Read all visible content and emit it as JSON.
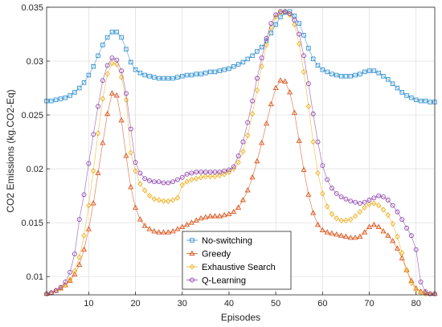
{
  "chart_data": {
    "type": "line",
    "title": "",
    "xlabel": "Episodes",
    "ylabel": "CO2 Emissions (kg.CO2-Eq)",
    "xlim": [
      1,
      84
    ],
    "ylim": [
      0.0083,
      0.035
    ],
    "xticks": [
      10,
      20,
      30,
      40,
      50,
      60,
      70,
      80
    ],
    "yticks": [
      0.01,
      0.015,
      0.02,
      0.025,
      0.03,
      0.035
    ],
    "ytick_labels": [
      "0.01",
      "0.015",
      "0.02",
      "0.025",
      "0.03",
      "0.035"
    ],
    "grid": true,
    "legend_position": "bottom-center",
    "x": [
      1,
      2,
      3,
      4,
      5,
      6,
      7,
      8,
      9,
      10,
      11,
      12,
      13,
      14,
      15,
      16,
      17,
      18,
      19,
      20,
      21,
      22,
      23,
      24,
      25,
      26,
      27,
      28,
      29,
      30,
      31,
      32,
      33,
      34,
      35,
      36,
      37,
      38,
      39,
      40,
      41,
      42,
      43,
      44,
      45,
      46,
      47,
      48,
      49,
      50,
      51,
      52,
      53,
      54,
      55,
      56,
      57,
      58,
      59,
      60,
      61,
      62,
      63,
      64,
      65,
      66,
      67,
      68,
      69,
      70,
      71,
      72,
      73,
      74,
      75,
      76,
      77,
      78,
      79,
      80,
      81,
      82,
      83,
      84
    ],
    "series": [
      {
        "name": "No-switching",
        "color": "#2f8fd0",
        "marker": "square",
        "values": [
          0.0263,
          0.0263,
          0.0264,
          0.0265,
          0.0266,
          0.0268,
          0.0271,
          0.0275,
          0.028,
          0.0287,
          0.0295,
          0.0305,
          0.0315,
          0.0322,
          0.0327,
          0.0327,
          0.0322,
          0.0311,
          0.0299,
          0.0292,
          0.0289,
          0.0287,
          0.0286,
          0.0285,
          0.0284,
          0.0284,
          0.0284,
          0.0284,
          0.0285,
          0.0286,
          0.0287,
          0.0287,
          0.0288,
          0.0288,
          0.0289,
          0.029,
          0.029,
          0.0291,
          0.0292,
          0.0293,
          0.0295,
          0.0297,
          0.0299,
          0.0302,
          0.0305,
          0.0309,
          0.0313,
          0.0319,
          0.0326,
          0.0334,
          0.0341,
          0.0345,
          0.0346,
          0.0342,
          0.0335,
          0.0324,
          0.0312,
          0.0302,
          0.0296,
          0.0292,
          0.029,
          0.0288,
          0.0287,
          0.0286,
          0.0286,
          0.0286,
          0.0287,
          0.0288,
          0.029,
          0.0291,
          0.0291,
          0.0289,
          0.0286,
          0.0283,
          0.0279,
          0.0275,
          0.0271,
          0.0268,
          0.0266,
          0.0264,
          0.0263,
          0.0263,
          0.0262,
          0.0262
        ]
      },
      {
        "name": "Greedy",
        "color": "#d95319",
        "marker": "triangle",
        "values": [
          0.0084,
          0.0085,
          0.0087,
          0.0089,
          0.0092,
          0.0096,
          0.0102,
          0.0111,
          0.0125,
          0.0144,
          0.0168,
          0.0196,
          0.0224,
          0.0251,
          0.027,
          0.0268,
          0.0245,
          0.0212,
          0.0183,
          0.0164,
          0.0153,
          0.0147,
          0.0144,
          0.0142,
          0.0141,
          0.0141,
          0.0141,
          0.0142,
          0.0144,
          0.0146,
          0.0148,
          0.015,
          0.0152,
          0.0154,
          0.0155,
          0.0156,
          0.0156,
          0.0156,
          0.0157,
          0.0158,
          0.016,
          0.0164,
          0.0171,
          0.018,
          0.0192,
          0.0207,
          0.0224,
          0.0242,
          0.026,
          0.0275,
          0.0282,
          0.0281,
          0.0271,
          0.0252,
          0.0226,
          0.0199,
          0.0176,
          0.0159,
          0.0148,
          0.0143,
          0.0141,
          0.014,
          0.0139,
          0.0138,
          0.0137,
          0.0136,
          0.0136,
          0.0137,
          0.0141,
          0.0146,
          0.0148,
          0.0146,
          0.0142,
          0.0138,
          0.0133,
          0.0126,
          0.0117,
          0.0106,
          0.0096,
          0.0089,
          0.0086,
          0.0085,
          0.0084,
          0.0084
        ]
      },
      {
        "name": "Exhaustive Search",
        "color": "#edb120",
        "marker": "diamond",
        "values": [
          0.0084,
          0.0085,
          0.0087,
          0.0089,
          0.0092,
          0.0097,
          0.0105,
          0.0118,
          0.0138,
          0.0166,
          0.0198,
          0.0233,
          0.0265,
          0.0288,
          0.0298,
          0.0297,
          0.0285,
          0.0264,
          0.0215,
          0.0198,
          0.0186,
          0.018,
          0.0175,
          0.0172,
          0.0171,
          0.017,
          0.017,
          0.0171,
          0.0173,
          0.0185,
          0.0188,
          0.019,
          0.0191,
          0.0192,
          0.0193,
          0.0193,
          0.0193,
          0.0194,
          0.0195,
          0.0197,
          0.02,
          0.0206,
          0.0216,
          0.0231,
          0.0251,
          0.0273,
          0.0295,
          0.0315,
          0.0331,
          0.0341,
          0.0345,
          0.0346,
          0.0343,
          0.0334,
          0.0316,
          0.029,
          0.0258,
          0.0225,
          0.0196,
          0.0177,
          0.0165,
          0.0158,
          0.0154,
          0.0152,
          0.0152,
          0.0153,
          0.0156,
          0.016,
          0.0164,
          0.0167,
          0.0168,
          0.0166,
          0.0162,
          0.0157,
          0.0149,
          0.0137,
          0.0122,
          0.0106,
          0.0094,
          0.0088,
          0.0085,
          0.0084,
          0.0084,
          0.0084
        ]
      },
      {
        "name": "Q-Learning",
        "color": "#8e44ad",
        "marker": "circle",
        "values": [
          0.0084,
          0.0085,
          0.0087,
          0.009,
          0.0095,
          0.0104,
          0.0121,
          0.0153,
          0.0176,
          0.0205,
          0.0232,
          0.0258,
          0.0282,
          0.0296,
          0.0303,
          0.0301,
          0.0291,
          0.027,
          0.0237,
          0.0206,
          0.0196,
          0.0191,
          0.0189,
          0.0188,
          0.0188,
          0.0187,
          0.0187,
          0.0188,
          0.019,
          0.0192,
          0.0195,
          0.0196,
          0.0197,
          0.0197,
          0.0197,
          0.0197,
          0.0197,
          0.0197,
          0.0198,
          0.0199,
          0.0202,
          0.0212,
          0.0225,
          0.0243,
          0.0263,
          0.0284,
          0.0303,
          0.0321,
          0.0335,
          0.0343,
          0.0346,
          0.0346,
          0.0344,
          0.0338,
          0.0325,
          0.0305,
          0.0279,
          0.0251,
          0.0225,
          0.0203,
          0.019,
          0.0182,
          0.0177,
          0.0174,
          0.0172,
          0.017,
          0.0169,
          0.0168,
          0.0169,
          0.0171,
          0.0173,
          0.0175,
          0.0174,
          0.0171,
          0.0166,
          0.016,
          0.0153,
          0.0145,
          0.0138,
          0.0125,
          0.0095,
          0.0086,
          0.0084,
          0.0084
        ]
      }
    ]
  }
}
